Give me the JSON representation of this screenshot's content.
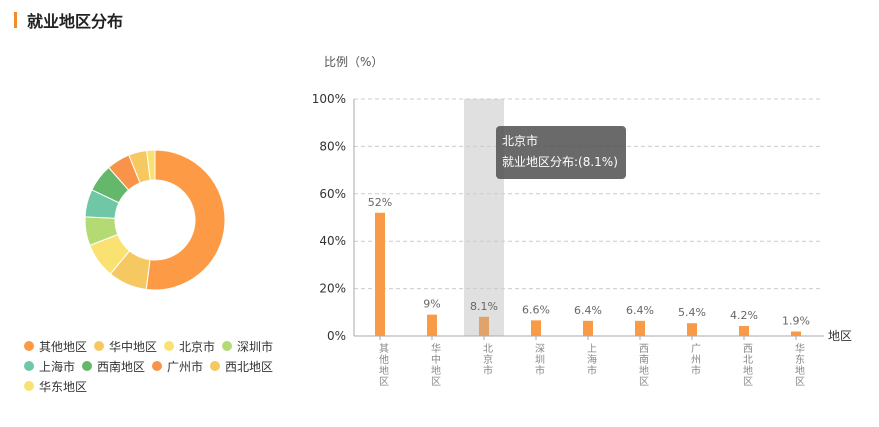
{
  "header": {
    "title": "就业地区分布"
  },
  "chart_data": {
    "type": "bar",
    "ylabel": "比例（%）",
    "xlabel": "地区",
    "ylim": [
      0,
      100
    ],
    "yticks": [
      "0%",
      "20%",
      "40%",
      "60%",
      "80%",
      "100%"
    ],
    "categories": [
      "其他地区",
      "华中地区",
      "北京市",
      "深圳市",
      "上海市",
      "西南地区",
      "广州市",
      "西北地区",
      "华东地区"
    ],
    "values": [
      52,
      9,
      8.1,
      6.6,
      6.4,
      6.4,
      5.4,
      4.2,
      1.9
    ],
    "value_labels": [
      "52%",
      "9%",
      "8.1%",
      "6.6%",
      "6.4%",
      "6.4%",
      "5.4%",
      "4.2%",
      "1.9%"
    ],
    "highlighted_index": 2,
    "bar_color": "#f99a47",
    "highlight_bar_color": "#e0a46b",
    "grid": true
  },
  "donut": {
    "colors": [
      "#fd9a46",
      "#f6c861",
      "#f9e272",
      "#b4db73",
      "#6fc7a6",
      "#64b76b",
      "#f9934a",
      "#f6c861",
      "#f9e272"
    ]
  },
  "tooltip": {
    "title": "北京市",
    "text": "就业地区分布:(8.1%)"
  }
}
